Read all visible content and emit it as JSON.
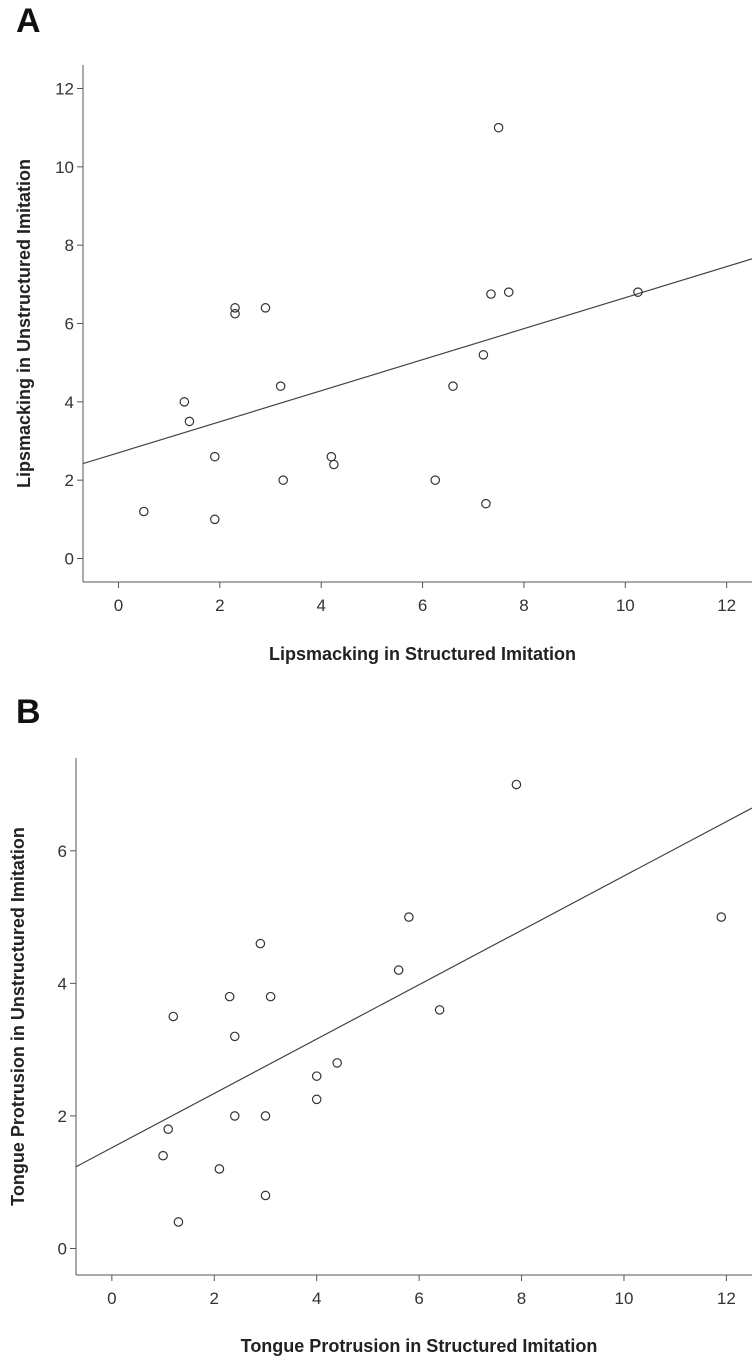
{
  "panels": [
    {
      "label": "A"
    },
    {
      "label": "B"
    }
  ],
  "chart_data": [
    {
      "type": "scatter",
      "panel": "A",
      "xlabel": "Lipsmacking in Structured Imitation",
      "ylabel": "Lipsmacking in Unstructured Imitation",
      "xlim": [
        -0.7,
        12.5
      ],
      "ylim": [
        -0.6,
        12.6
      ],
      "xticks": [
        0,
        2,
        4,
        6,
        8,
        10,
        12
      ],
      "yticks": [
        0,
        2,
        4,
        6,
        8,
        10,
        12
      ],
      "grid": false,
      "points": [
        {
          "x": 0.5,
          "y": 1.2
        },
        {
          "x": 1.3,
          "y": 4.0
        },
        {
          "x": 1.4,
          "y": 3.5
        },
        {
          "x": 1.9,
          "y": 1.0
        },
        {
          "x": 1.9,
          "y": 2.6
        },
        {
          "x": 2.3,
          "y": 6.4
        },
        {
          "x": 2.3,
          "y": 6.25
        },
        {
          "x": 2.9,
          "y": 6.4
        },
        {
          "x": 3.2,
          "y": 4.4
        },
        {
          "x": 3.25,
          "y": 2.0
        },
        {
          "x": 4.2,
          "y": 2.6
        },
        {
          "x": 4.25,
          "y": 2.4
        },
        {
          "x": 6.25,
          "y": 2.0
        },
        {
          "x": 6.6,
          "y": 4.4
        },
        {
          "x": 7.2,
          "y": 5.2
        },
        {
          "x": 7.25,
          "y": 1.4
        },
        {
          "x": 7.35,
          "y": 6.75
        },
        {
          "x": 7.5,
          "y": 11.0
        },
        {
          "x": 7.7,
          "y": 6.8
        },
        {
          "x": 10.25,
          "y": 6.8
        }
      ],
      "fit_line": {
        "intercept": 2.7,
        "slope": 0.396
      }
    },
    {
      "type": "scatter",
      "panel": "B",
      "xlabel": "Tongue Protrusion in Structured Imitation",
      "ylabel": "Tongue Protrusion in Unstructured Imitation",
      "xlim": [
        -0.7,
        12.5
      ],
      "ylim": [
        -0.4,
        7.4
      ],
      "xticks": [
        0,
        2,
        4,
        6,
        8,
        10,
        12
      ],
      "yticks": [
        0,
        2,
        4,
        6
      ],
      "grid": false,
      "points": [
        {
          "x": 1.0,
          "y": 1.4
        },
        {
          "x": 1.1,
          "y": 1.8
        },
        {
          "x": 1.2,
          "y": 3.5
        },
        {
          "x": 1.3,
          "y": 0.4
        },
        {
          "x": 2.1,
          "y": 1.2
        },
        {
          "x": 2.3,
          "y": 3.8
        },
        {
          "x": 2.4,
          "y": 3.2
        },
        {
          "x": 2.4,
          "y": 2.0
        },
        {
          "x": 2.9,
          "y": 4.6
        },
        {
          "x": 3.0,
          "y": 2.0
        },
        {
          "x": 3.0,
          "y": 0.8
        },
        {
          "x": 3.1,
          "y": 3.8
        },
        {
          "x": 4.0,
          "y": 2.6
        },
        {
          "x": 4.0,
          "y": 2.25
        },
        {
          "x": 4.4,
          "y": 2.8
        },
        {
          "x": 5.6,
          "y": 4.2
        },
        {
          "x": 5.8,
          "y": 5.0
        },
        {
          "x": 6.4,
          "y": 3.6
        },
        {
          "x": 7.9,
          "y": 7.0
        },
        {
          "x": 11.9,
          "y": 5.0
        }
      ],
      "fit_line": {
        "intercept": 1.52,
        "slope": 0.41
      }
    }
  ]
}
